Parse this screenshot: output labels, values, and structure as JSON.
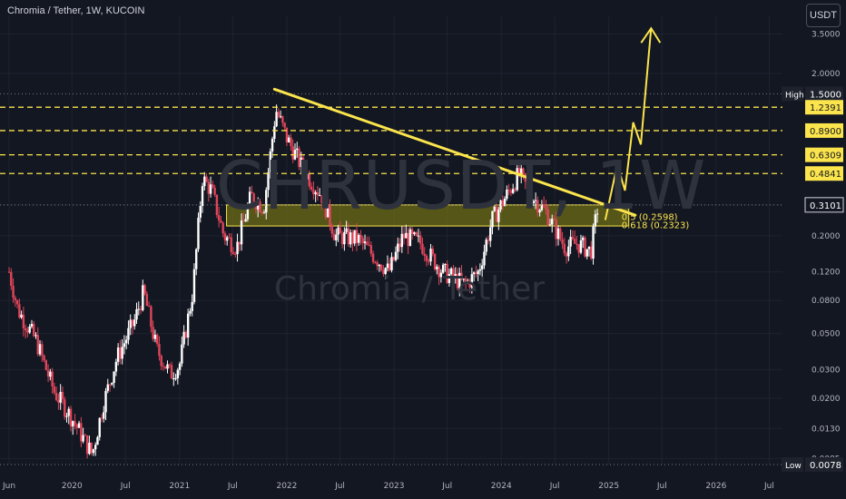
{
  "header": {
    "symbol_title": "Chromia / Tether, 1W, KUCOIN",
    "currency_button": "USDT"
  },
  "watermark": {
    "ticker": "CHRUSDT, 1W",
    "name": "Chromia / Tether"
  },
  "colors": {
    "background": "#131722",
    "up_candle": "#ffffff",
    "down_candle": "#e0455a",
    "trendline": "#fbe44c",
    "zone_fill": "#8c8a10",
    "grid": "#2a2e39",
    "axis_text": "#b2b5be"
  },
  "chart_data": {
    "type": "candlestick",
    "title": "Chromia / Tether, 1W, KUCOIN",
    "y_scale": "log",
    "y_range": [
      0.0078,
      4.5
    ],
    "y_tick_labels": [
      "3.5000",
      "2.0000",
      "0.3101",
      "0.2000",
      "0.1200",
      "0.0800",
      "0.0500",
      "0.0300",
      "0.0200",
      "0.0130",
      "0.0085"
    ],
    "y_tick_values": [
      3.5,
      2.0,
      0.3101,
      0.2,
      0.12,
      0.08,
      0.05,
      0.03,
      0.02,
      0.013,
      0.0085
    ],
    "x_tick_labels": [
      "Jun",
      "2020",
      "Jul",
      "2021",
      "Jul",
      "2022",
      "Jul",
      "2023",
      "Jul",
      "2024",
      "Jul",
      "2025",
      "Jul",
      "2026",
      "Jul"
    ],
    "x_tick_dates": [
      "2019-06-01",
      "2020-01-01",
      "2020-07-01",
      "2021-01-01",
      "2021-07-01",
      "2022-01-01",
      "2022-07-01",
      "2023-01-01",
      "2023-07-01",
      "2024-01-01",
      "2024-07-01",
      "2025-01-01",
      "2025-07-01",
      "2026-01-01",
      "2026-07-01"
    ],
    "x_range": [
      "2019-05-01",
      "2026-08-15"
    ],
    "price_path": [
      [
        "2019-06-01",
        0.12
      ],
      [
        "2019-07-01",
        0.07
      ],
      [
        "2019-09-01",
        0.045
      ],
      [
        "2019-11-01",
        0.022
      ],
      [
        "2020-01-01",
        0.015
      ],
      [
        "2020-03-10",
        0.009
      ],
      [
        "2020-04-15",
        0.018
      ],
      [
        "2020-06-01",
        0.035
      ],
      [
        "2020-08-01",
        0.06
      ],
      [
        "2020-09-01",
        0.09
      ],
      [
        "2020-10-15",
        0.04
      ],
      [
        "2020-12-01",
        0.028
      ],
      [
        "2021-01-01",
        0.032
      ],
      [
        "2021-02-15",
        0.09
      ],
      [
        "2021-03-20",
        0.45
      ],
      [
        "2021-04-20",
        0.38
      ],
      [
        "2021-06-01",
        0.2
      ],
      [
        "2021-07-15",
        0.17
      ],
      [
        "2021-09-01",
        0.35
      ],
      [
        "2021-10-15",
        0.3
      ],
      [
        "2021-11-25",
        1.2
      ],
      [
        "2022-01-01",
        0.8
      ],
      [
        "2022-03-01",
        0.5
      ],
      [
        "2022-05-01",
        0.35
      ],
      [
        "2022-06-15",
        0.2
      ],
      [
        "2022-09-01",
        0.19
      ],
      [
        "2022-12-15",
        0.12
      ],
      [
        "2023-02-01",
        0.2
      ],
      [
        "2023-04-01",
        0.18
      ],
      [
        "2023-06-15",
        0.12
      ],
      [
        "2023-09-01",
        0.1
      ],
      [
        "2023-10-15",
        0.12
      ],
      [
        "2023-12-01",
        0.25
      ],
      [
        "2024-03-01",
        0.48
      ],
      [
        "2024-04-15",
        0.35
      ],
      [
        "2024-06-01",
        0.28
      ],
      [
        "2024-08-05",
        0.17
      ],
      [
        "2024-09-15",
        0.18
      ],
      [
        "2024-11-01",
        0.16
      ],
      [
        "2024-11-25",
        0.3101
      ]
    ],
    "price_lines": [
      {
        "label": "High",
        "value": "1.5000",
        "price": 1.5,
        "style": "dotted",
        "color": "#787b86"
      },
      {
        "value": "1.2391",
        "price": 1.2391,
        "style": "dashed",
        "color": "#fbe44c"
      },
      {
        "value": "0.8900",
        "price": 0.89,
        "style": "dashed",
        "color": "#fbe44c"
      },
      {
        "value": "0.6309",
        "price": 0.6309,
        "style": "dashed",
        "color": "#fbe44c"
      },
      {
        "value": "0.4841",
        "price": 0.4841,
        "style": "dashed",
        "color": "#fbe44c"
      },
      {
        "value": "0.3101",
        "price": 0.3101,
        "style": "dotted",
        "color": "#787b86",
        "current": true
      },
      {
        "label": "Low",
        "value": "0.0078",
        "price": 0.0078,
        "style": "dotted",
        "color": "#787b86"
      }
    ],
    "trendline": {
      "from": [
        "2021-11-20",
        1.6
      ],
      "to": [
        "2025-04-01",
        0.268
      ]
    },
    "support_zone": {
      "from_date": "2021-06-10",
      "to_date": "2025-03-10",
      "top": 0.31,
      "bottom": 0.23
    },
    "zone_labels": [
      "0.5 (0.2598)",
      "0.618 (0.2323)"
    ],
    "projection": [
      [
        "2024-12-20",
        0.25
      ],
      [
        "2025-01-30",
        0.55
      ],
      [
        "2025-02-25",
        0.38
      ],
      [
        "2025-03-25",
        1.0
      ],
      [
        "2025-04-20",
        0.73
      ],
      [
        "2025-05-25",
        3.8
      ]
    ]
  }
}
